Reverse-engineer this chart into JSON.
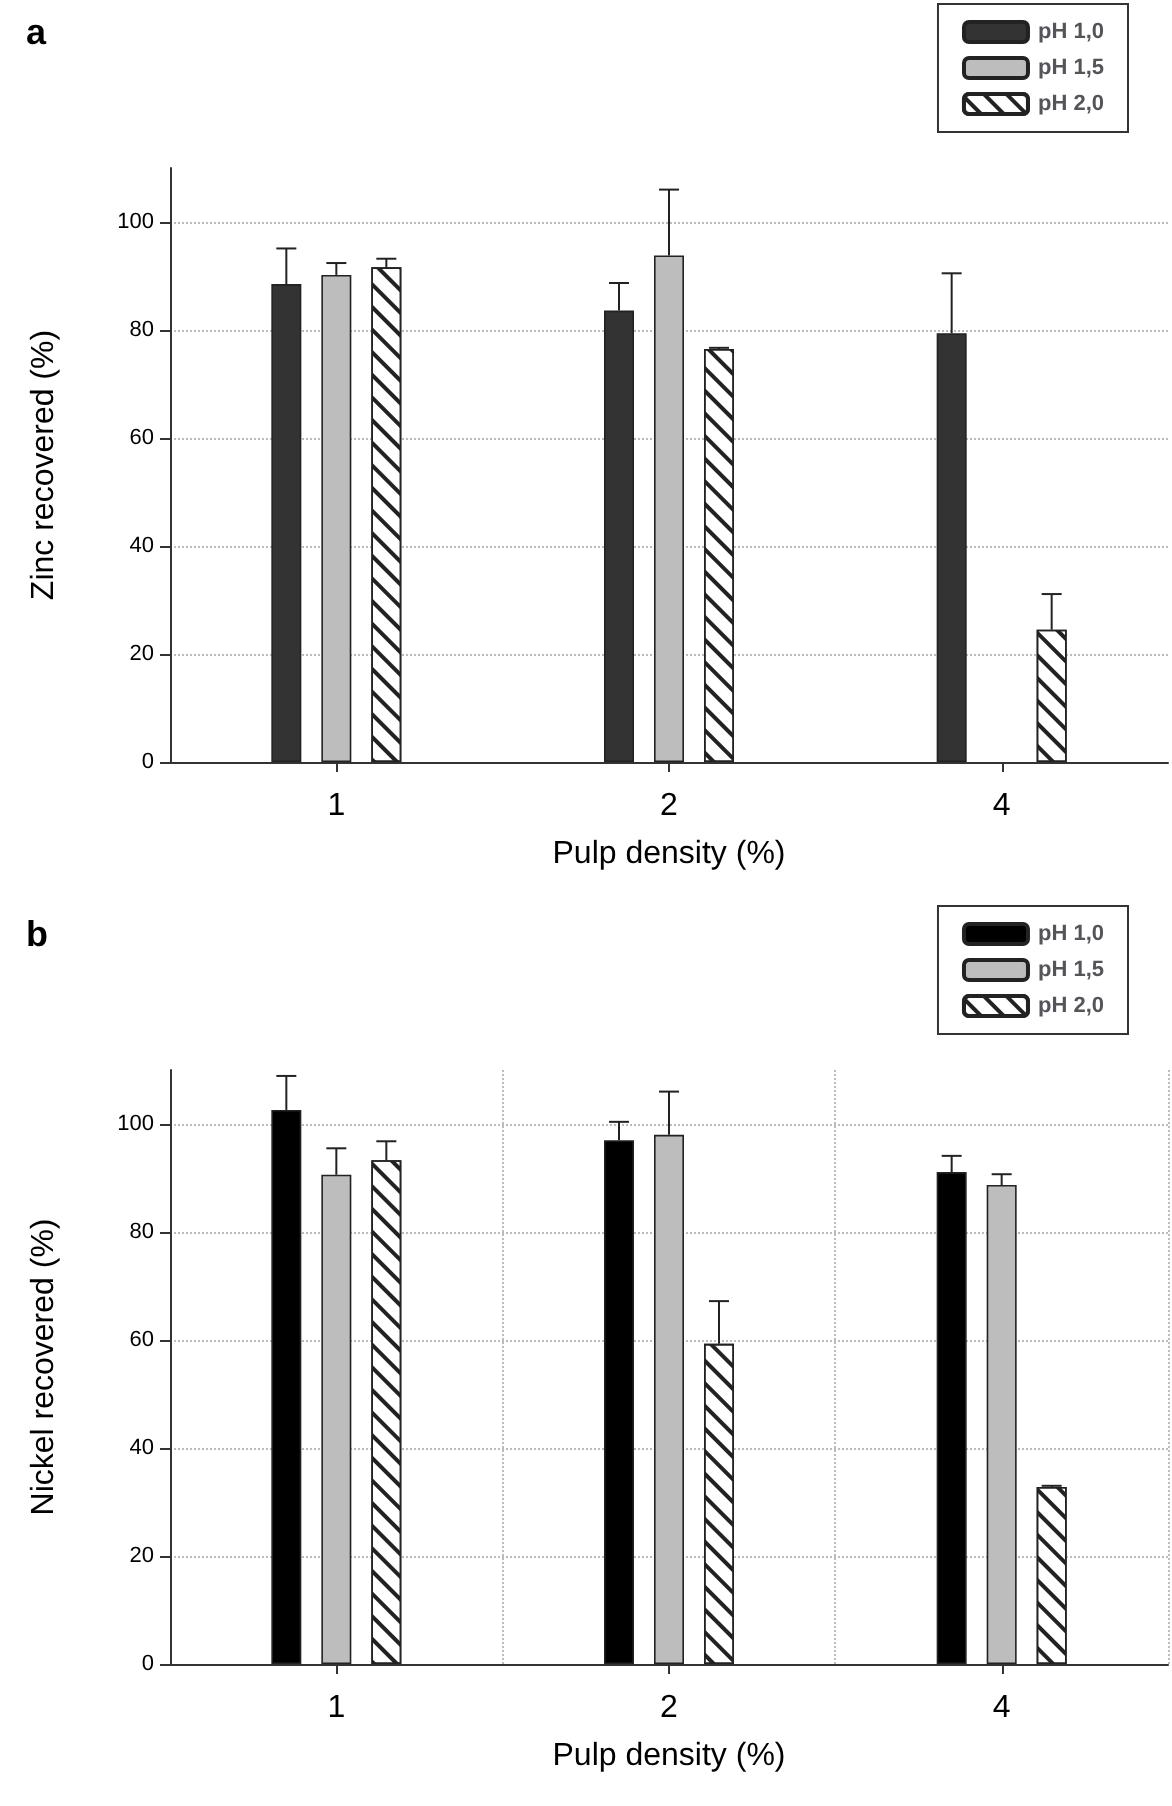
{
  "chart_data": [
    {
      "type": "bar",
      "title": "a",
      "xlabel": "Pulp density (%)",
      "ylabel": "Zinc recovered (%)",
      "categories": [
        "1",
        "2",
        "4"
      ],
      "series": [
        {
          "name": "pH 1,0",
          "color": "#333333",
          "values": [
            88.5,
            83.6,
            79.4
          ],
          "errors": [
            [
              88.5,
              95.1
            ],
            [
              83.6,
              88.7
            ],
            [
              79.4,
              90.5
            ]
          ]
        },
        {
          "name": "pH 1,5",
          "color": "#bdbdbd",
          "values": [
            90.2,
            93.8,
            null
          ],
          "errors": [
            [
              90.2,
              92.4
            ],
            [
              93.8,
              106
            ],
            null
          ]
        },
        {
          "name": "pH 2,0",
          "color": "#ffffff",
          "values": [
            91.6,
            76.5,
            24.5
          ],
          "errors": [
            [
              91.6,
              93.2
            ],
            [
              76.5,
              76.7
            ],
            [
              24.5,
              31.1
            ]
          ]
        }
      ],
      "ylim": [
        0,
        110
      ],
      "yticks": [
        0,
        20,
        40,
        60,
        80,
        100
      ],
      "grid": "y",
      "legend": "top right"
    },
    {
      "type": "bar",
      "title": "b",
      "xlabel": "Pulp density (%)",
      "ylabel": "Nickel recovered (%)",
      "categories": [
        "1",
        "2",
        "4"
      ],
      "series": [
        {
          "name": "pH 1,0",
          "color": "#000000",
          "values": [
            102.6,
            97.0,
            91.1
          ],
          "errors": [
            [
              102.6,
              108.9
            ],
            [
              97.0,
              100.4
            ],
            [
              91.1,
              94.1
            ]
          ]
        },
        {
          "name": "pH 1,5",
          "color": "#bdbdbd",
          "values": [
            90.6,
            98.0,
            88.7
          ],
          "errors": [
            [
              90.6,
              95.5
            ],
            [
              98.0,
              106
            ],
            [
              88.7,
              90.7
            ]
          ]
        },
        {
          "name": "pH 2,0",
          "color": "#ffffff",
          "values": [
            93.3,
            59.3,
            32.8
          ],
          "errors": [
            [
              93.3,
              96.8
            ],
            [
              59.3,
              67.2
            ],
            [
              32.8,
              33.0
            ]
          ]
        }
      ],
      "ylim": [
        0,
        110
      ],
      "yticks": [
        0,
        20,
        40,
        60,
        80,
        100
      ],
      "grid": true,
      "legend": "top right"
    }
  ]
}
